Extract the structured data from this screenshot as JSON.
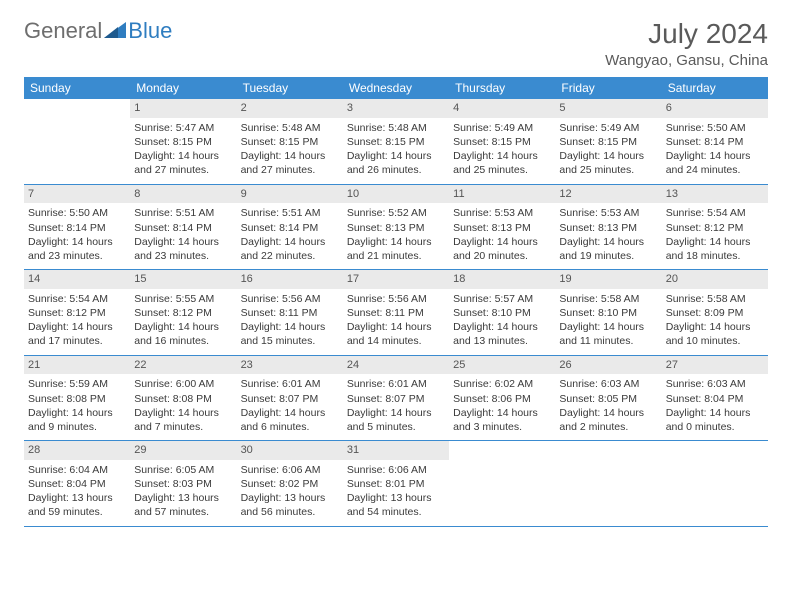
{
  "logo": {
    "word1": "General",
    "word2": "Blue"
  },
  "title": "July 2024",
  "location": "Wangyao, Gansu, China",
  "colors": {
    "header_bg": "#3a8bd0",
    "header_text": "#ffffff",
    "daynum_bg": "#eaeaea",
    "border": "#3a8bd0",
    "body_text": "#3a3a3a",
    "title_text": "#5a5a5a",
    "logo_gray": "#6e6e6e",
    "logo_blue": "#2f7dc0"
  },
  "weekdays": [
    "Sunday",
    "Monday",
    "Tuesday",
    "Wednesday",
    "Thursday",
    "Friday",
    "Saturday"
  ],
  "weeks": [
    [
      {
        "day": "",
        "sunrise": "",
        "sunset": "",
        "daylight1": "",
        "daylight2": ""
      },
      {
        "day": "1",
        "sunrise": "Sunrise: 5:47 AM",
        "sunset": "Sunset: 8:15 PM",
        "daylight1": "Daylight: 14 hours",
        "daylight2": "and 27 minutes."
      },
      {
        "day": "2",
        "sunrise": "Sunrise: 5:48 AM",
        "sunset": "Sunset: 8:15 PM",
        "daylight1": "Daylight: 14 hours",
        "daylight2": "and 27 minutes."
      },
      {
        "day": "3",
        "sunrise": "Sunrise: 5:48 AM",
        "sunset": "Sunset: 8:15 PM",
        "daylight1": "Daylight: 14 hours",
        "daylight2": "and 26 minutes."
      },
      {
        "day": "4",
        "sunrise": "Sunrise: 5:49 AM",
        "sunset": "Sunset: 8:15 PM",
        "daylight1": "Daylight: 14 hours",
        "daylight2": "and 25 minutes."
      },
      {
        "day": "5",
        "sunrise": "Sunrise: 5:49 AM",
        "sunset": "Sunset: 8:15 PM",
        "daylight1": "Daylight: 14 hours",
        "daylight2": "and 25 minutes."
      },
      {
        "day": "6",
        "sunrise": "Sunrise: 5:50 AM",
        "sunset": "Sunset: 8:14 PM",
        "daylight1": "Daylight: 14 hours",
        "daylight2": "and 24 minutes."
      }
    ],
    [
      {
        "day": "7",
        "sunrise": "Sunrise: 5:50 AM",
        "sunset": "Sunset: 8:14 PM",
        "daylight1": "Daylight: 14 hours",
        "daylight2": "and 23 minutes."
      },
      {
        "day": "8",
        "sunrise": "Sunrise: 5:51 AM",
        "sunset": "Sunset: 8:14 PM",
        "daylight1": "Daylight: 14 hours",
        "daylight2": "and 23 minutes."
      },
      {
        "day": "9",
        "sunrise": "Sunrise: 5:51 AM",
        "sunset": "Sunset: 8:14 PM",
        "daylight1": "Daylight: 14 hours",
        "daylight2": "and 22 minutes."
      },
      {
        "day": "10",
        "sunrise": "Sunrise: 5:52 AM",
        "sunset": "Sunset: 8:13 PM",
        "daylight1": "Daylight: 14 hours",
        "daylight2": "and 21 minutes."
      },
      {
        "day": "11",
        "sunrise": "Sunrise: 5:53 AM",
        "sunset": "Sunset: 8:13 PM",
        "daylight1": "Daylight: 14 hours",
        "daylight2": "and 20 minutes."
      },
      {
        "day": "12",
        "sunrise": "Sunrise: 5:53 AM",
        "sunset": "Sunset: 8:13 PM",
        "daylight1": "Daylight: 14 hours",
        "daylight2": "and 19 minutes."
      },
      {
        "day": "13",
        "sunrise": "Sunrise: 5:54 AM",
        "sunset": "Sunset: 8:12 PM",
        "daylight1": "Daylight: 14 hours",
        "daylight2": "and 18 minutes."
      }
    ],
    [
      {
        "day": "14",
        "sunrise": "Sunrise: 5:54 AM",
        "sunset": "Sunset: 8:12 PM",
        "daylight1": "Daylight: 14 hours",
        "daylight2": "and 17 minutes."
      },
      {
        "day": "15",
        "sunrise": "Sunrise: 5:55 AM",
        "sunset": "Sunset: 8:12 PM",
        "daylight1": "Daylight: 14 hours",
        "daylight2": "and 16 minutes."
      },
      {
        "day": "16",
        "sunrise": "Sunrise: 5:56 AM",
        "sunset": "Sunset: 8:11 PM",
        "daylight1": "Daylight: 14 hours",
        "daylight2": "and 15 minutes."
      },
      {
        "day": "17",
        "sunrise": "Sunrise: 5:56 AM",
        "sunset": "Sunset: 8:11 PM",
        "daylight1": "Daylight: 14 hours",
        "daylight2": "and 14 minutes."
      },
      {
        "day": "18",
        "sunrise": "Sunrise: 5:57 AM",
        "sunset": "Sunset: 8:10 PM",
        "daylight1": "Daylight: 14 hours",
        "daylight2": "and 13 minutes."
      },
      {
        "day": "19",
        "sunrise": "Sunrise: 5:58 AM",
        "sunset": "Sunset: 8:10 PM",
        "daylight1": "Daylight: 14 hours",
        "daylight2": "and 11 minutes."
      },
      {
        "day": "20",
        "sunrise": "Sunrise: 5:58 AM",
        "sunset": "Sunset: 8:09 PM",
        "daylight1": "Daylight: 14 hours",
        "daylight2": "and 10 minutes."
      }
    ],
    [
      {
        "day": "21",
        "sunrise": "Sunrise: 5:59 AM",
        "sunset": "Sunset: 8:08 PM",
        "daylight1": "Daylight: 14 hours",
        "daylight2": "and 9 minutes."
      },
      {
        "day": "22",
        "sunrise": "Sunrise: 6:00 AM",
        "sunset": "Sunset: 8:08 PM",
        "daylight1": "Daylight: 14 hours",
        "daylight2": "and 7 minutes."
      },
      {
        "day": "23",
        "sunrise": "Sunrise: 6:01 AM",
        "sunset": "Sunset: 8:07 PM",
        "daylight1": "Daylight: 14 hours",
        "daylight2": "and 6 minutes."
      },
      {
        "day": "24",
        "sunrise": "Sunrise: 6:01 AM",
        "sunset": "Sunset: 8:07 PM",
        "daylight1": "Daylight: 14 hours",
        "daylight2": "and 5 minutes."
      },
      {
        "day": "25",
        "sunrise": "Sunrise: 6:02 AM",
        "sunset": "Sunset: 8:06 PM",
        "daylight1": "Daylight: 14 hours",
        "daylight2": "and 3 minutes."
      },
      {
        "day": "26",
        "sunrise": "Sunrise: 6:03 AM",
        "sunset": "Sunset: 8:05 PM",
        "daylight1": "Daylight: 14 hours",
        "daylight2": "and 2 minutes."
      },
      {
        "day": "27",
        "sunrise": "Sunrise: 6:03 AM",
        "sunset": "Sunset: 8:04 PM",
        "daylight1": "Daylight: 14 hours",
        "daylight2": "and 0 minutes."
      }
    ],
    [
      {
        "day": "28",
        "sunrise": "Sunrise: 6:04 AM",
        "sunset": "Sunset: 8:04 PM",
        "daylight1": "Daylight: 13 hours",
        "daylight2": "and 59 minutes."
      },
      {
        "day": "29",
        "sunrise": "Sunrise: 6:05 AM",
        "sunset": "Sunset: 8:03 PM",
        "daylight1": "Daylight: 13 hours",
        "daylight2": "and 57 minutes."
      },
      {
        "day": "30",
        "sunrise": "Sunrise: 6:06 AM",
        "sunset": "Sunset: 8:02 PM",
        "daylight1": "Daylight: 13 hours",
        "daylight2": "and 56 minutes."
      },
      {
        "day": "31",
        "sunrise": "Sunrise: 6:06 AM",
        "sunset": "Sunset: 8:01 PM",
        "daylight1": "Daylight: 13 hours",
        "daylight2": "and 54 minutes."
      },
      {
        "day": "",
        "sunrise": "",
        "sunset": "",
        "daylight1": "",
        "daylight2": ""
      },
      {
        "day": "",
        "sunrise": "",
        "sunset": "",
        "daylight1": "",
        "daylight2": ""
      },
      {
        "day": "",
        "sunrise": "",
        "sunset": "",
        "daylight1": "",
        "daylight2": ""
      }
    ]
  ]
}
